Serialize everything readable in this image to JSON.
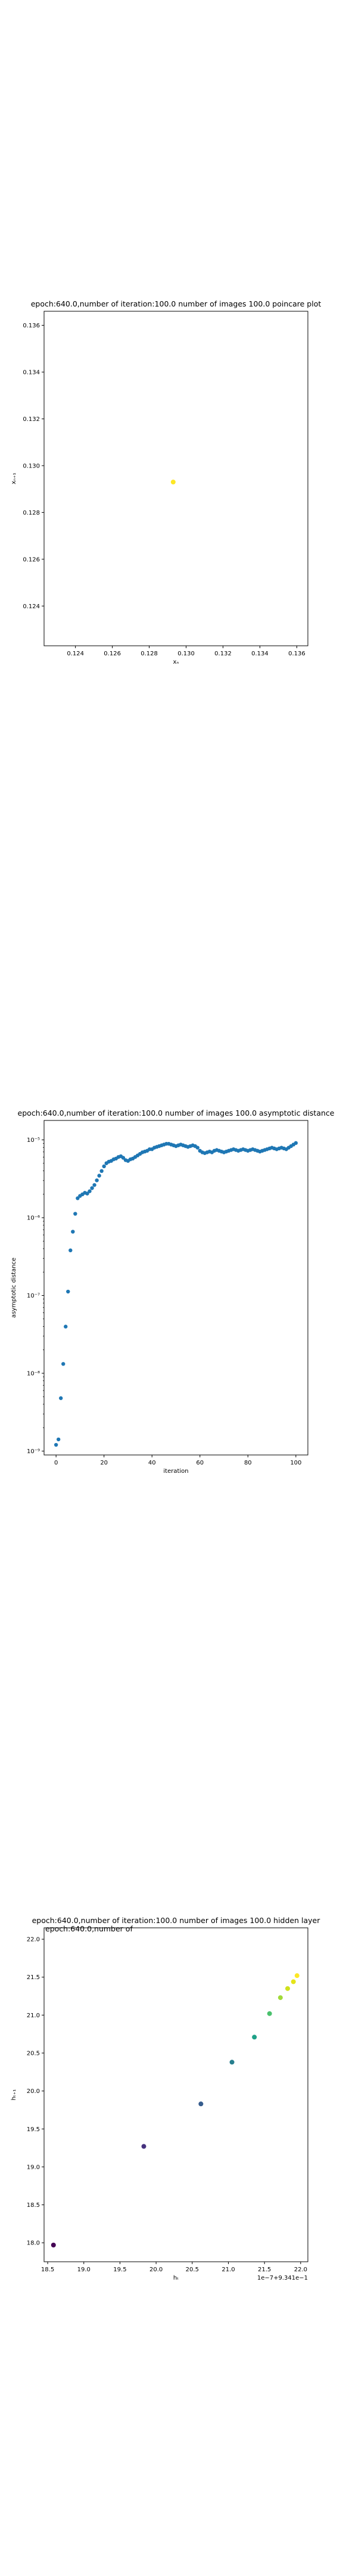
{
  "chart_data": [
    {
      "type": "scatter",
      "title": "epoch:640.0,number of iteration:100.0 number of images 100.0 poincare plot",
      "xlabel": "xₙ",
      "ylabel": "xₙ₊₁",
      "xlim": [
        0.1223,
        0.1366
      ],
      "ylim": [
        0.1223,
        0.1366
      ],
      "xticks": [
        0.124,
        0.126,
        0.128,
        0.13,
        0.132,
        0.134,
        0.136
      ],
      "xtick_labels": [
        "0.124",
        "0.126",
        "0.128",
        "0.130",
        "0.132",
        "0.134",
        "0.136"
      ],
      "yticks": [
        0.124,
        0.126,
        0.128,
        0.13,
        0.132,
        0.134,
        0.136
      ],
      "ytick_labels": [
        "0.124",
        "0.126",
        "0.128",
        "0.130",
        "0.132",
        "0.134",
        "0.136"
      ],
      "grid": false,
      "points": [
        {
          "x": 0.1293,
          "y": 0.1293
        }
      ],
      "colors": {
        "point": "#fde725"
      }
    },
    {
      "type": "scatter",
      "title": "epoch:640.0,number of iteration:100.0  number of images 100.0 asymptotic distance",
      "xlabel": "iteration",
      "ylabel": "asymptotic distance",
      "yscale": "log",
      "xlim": [
        -5,
        105
      ],
      "ylim_log10": [
        -9.05,
        -4.75
      ],
      "xticks": [
        0,
        20,
        40,
        60,
        80,
        100
      ],
      "xtick_labels": [
        "0",
        "20",
        "40",
        "60",
        "80",
        "100"
      ],
      "yticks_log10": [
        -9,
        -8,
        -7,
        -6,
        -5
      ],
      "ytick_labels": [
        "10⁻⁹",
        "10⁻⁸",
        "10⁻⁷",
        "10⁻⁶",
        "10⁻⁵"
      ],
      "grid": false,
      "x": [
        0,
        1,
        2,
        3,
        4,
        5,
        6,
        7,
        8,
        9,
        10,
        11,
        12,
        13,
        14,
        15,
        16,
        17,
        18,
        19,
        20,
        21,
        22,
        23,
        24,
        25,
        26,
        27,
        28,
        29,
        30,
        31,
        32,
        33,
        34,
        35,
        36,
        37,
        38,
        39,
        40,
        41,
        42,
        43,
        44,
        45,
        46,
        47,
        48,
        49,
        50,
        51,
        52,
        53,
        54,
        55,
        56,
        57,
        58,
        59,
        60,
        61,
        62,
        63,
        64,
        65,
        66,
        67,
        68,
        69,
        70,
        71,
        72,
        73,
        74,
        75,
        76,
        77,
        78,
        79,
        80,
        81,
        82,
        83,
        84,
        85,
        86,
        87,
        88,
        89,
        90,
        91,
        92,
        93,
        94,
        95,
        96,
        97,
        98,
        99,
        100
      ],
      "y_log10": [
        -8.92,
        -8.85,
        -8.32,
        -7.88,
        -7.4,
        -6.95,
        -6.42,
        -6.18,
        -5.95,
        -5.75,
        -5.72,
        -5.7,
        -5.68,
        -5.69,
        -5.66,
        -5.62,
        -5.58,
        -5.52,
        -5.46,
        -5.4,
        -5.34,
        -5.3,
        -5.28,
        -5.27,
        -5.25,
        -5.24,
        -5.22,
        -5.21,
        -5.23,
        -5.26,
        -5.27,
        -5.25,
        -5.24,
        -5.22,
        -5.2,
        -5.18,
        -5.16,
        -5.15,
        -5.14,
        -5.12,
        -5.12,
        -5.1,
        -5.09,
        -5.08,
        -5.07,
        -5.06,
        -5.05,
        -5.05,
        -5.06,
        -5.07,
        -5.08,
        -5.07,
        -5.06,
        -5.07,
        -5.08,
        -5.09,
        -5.08,
        -5.07,
        -5.08,
        -5.1,
        -5.14,
        -5.16,
        -5.17,
        -5.16,
        -5.15,
        -5.16,
        -5.14,
        -5.13,
        -5.14,
        -5.15,
        -5.16,
        -5.15,
        -5.14,
        -5.13,
        -5.12,
        -5.13,
        -5.14,
        -5.13,
        -5.12,
        -5.13,
        -5.14,
        -5.13,
        -5.12,
        -5.13,
        -5.14,
        -5.15,
        -5.14,
        -5.13,
        -5.12,
        -5.11,
        -5.1,
        -5.11,
        -5.12,
        -5.11,
        -5.1,
        -5.11,
        -5.12,
        -5.1,
        -5.08,
        -5.06,
        -5.04
      ],
      "colors": {
        "point": "#1f77b4"
      }
    },
    {
      "type": "scatter",
      "title": "epoch:640.0,number of iteration:100.0  number of images 100.0 hidden layer",
      "overlap_title": "epoch:640.0,number of",
      "xlabel": "hₜ",
      "ylabel": "hₜ₊₁",
      "x_offset_label": "1e−7+9.341e−1",
      "xlim": [
        18.45,
        22.1
      ],
      "ylim": [
        17.75,
        22.15
      ],
      "xticks": [
        18.5,
        19.0,
        19.5,
        20.0,
        20.5,
        21.0,
        21.5,
        22.0
      ],
      "xtick_labels": [
        "18.5",
        "19.0",
        "19.5",
        "20.0",
        "20.5",
        "21.0",
        "21.5",
        "22.0"
      ],
      "yticks": [
        18.0,
        18.5,
        19.0,
        19.5,
        20.0,
        20.5,
        21.0,
        21.5,
        22.0
      ],
      "ytick_labels": [
        "",
        "",
        "",
        "",
        "",
        "",
        "",
        "",
        ""
      ],
      "grid": false,
      "points": [
        {
          "x": 18.58,
          "y": 17.97,
          "color": "#440154"
        },
        {
          "x": 19.83,
          "y": 19.27,
          "color": "#46327e"
        },
        {
          "x": 20.62,
          "y": 19.83,
          "color": "#365c8d"
        },
        {
          "x": 21.05,
          "y": 20.38,
          "color": "#277f8e"
        },
        {
          "x": 21.36,
          "y": 20.71,
          "color": "#1fa187"
        },
        {
          "x": 21.57,
          "y": 21.02,
          "color": "#4ac16d"
        },
        {
          "x": 21.72,
          "y": 21.23,
          "color": "#a0da39"
        },
        {
          "x": 21.82,
          "y": 21.35,
          "color": "#d0e11c"
        },
        {
          "x": 21.9,
          "y": 21.44,
          "color": "#e5e419"
        },
        {
          "x": 21.95,
          "y": 21.52,
          "color": "#fde725"
        }
      ]
    }
  ]
}
